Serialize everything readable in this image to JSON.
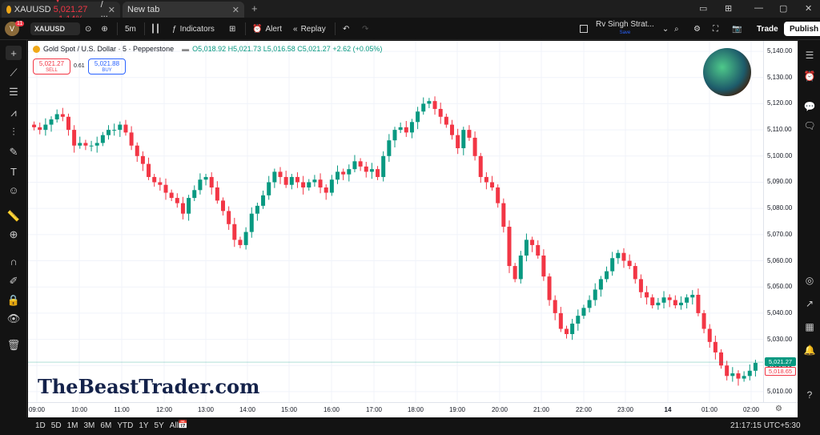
{
  "browser": {
    "tab1_title": "XAUUSD ▼ 5,021.27 −1.14% / ...",
    "tab1_symbol": "XAUUSD",
    "tab1_change": "▼ 5,021.27 −1.14%",
    "tab1_rest": "/ ...",
    "tab2_title": "New tab",
    "notif_count": "11"
  },
  "toolbar": {
    "symbol": "XAUUSD",
    "interval": "5m",
    "indicators_label": "Indicators",
    "alert_label": "Alert",
    "replay_label": "Replay",
    "layout_name": "Rv Singh Strat...",
    "layout_status": "Save",
    "trade_label": "Trade",
    "publish_label": "Publish"
  },
  "legend": {
    "title": "Gold Spot / U.S. Dollar · 5 · Pepperstone",
    "open": "O5,018.92",
    "high": "H5,021.73",
    "low": "L5,016.58",
    "close": "C5,021.27",
    "change": "+2.62 (+0.05%)",
    "sell_price": "5,021.27",
    "sell_label": "SELL",
    "spread": "0.61",
    "buy_price": "5,021.88",
    "buy_label": "BUY"
  },
  "watermark": "TheBeastTrader.com",
  "price_axis": {
    "labels": [
      "5,140.00",
      "5,130.00",
      "5,120.00",
      "5,110.00",
      "5,100.00",
      "5,090.00",
      "5,080.00",
      "5,070.00",
      "5,060.00",
      "5,050.00",
      "5,040.00",
      "5,030.00",
      "5,020.00",
      "5,010.00"
    ],
    "last_price": "5,021.27",
    "close_price": "5,018.65"
  },
  "time_axis": {
    "labels": [
      "09:00",
      "10:00",
      "11:00",
      "12:00",
      "13:00",
      "14:00",
      "15:00",
      "16:00",
      "17:00",
      "18:00",
      "19:00",
      "20:00",
      "21:00",
      "22:00",
      "23:00",
      "14",
      "01:00",
      "02:00"
    ]
  },
  "bottom": {
    "ranges": [
      "1D",
      "5D",
      "1M",
      "3M",
      "6M",
      "YTD",
      "1Y",
      "5Y",
      "All"
    ],
    "clock": "21:17:15 UTC+5:30"
  },
  "colors": {
    "up": "#089981",
    "down": "#f23645",
    "accent": "#2962ff"
  },
  "chart_data": {
    "type": "candlestick",
    "series_name": "Gold Spot / U.S. Dollar",
    "interval": "5",
    "ylim": [
      5006,
      5144
    ],
    "x_ticks": [
      "09:00",
      "10:00",
      "11:00",
      "12:00",
      "13:00",
      "14:00",
      "15:00",
      "16:00",
      "17:00",
      "18:00",
      "19:00",
      "20:00",
      "21:00",
      "22:00",
      "23:00",
      "14",
      "01:00",
      "02:00"
    ],
    "closes": [
      5111,
      5110,
      5112,
      5114,
      5116,
      5115,
      5110,
      5104,
      5105,
      5104,
      5104,
      5105,
      5108,
      5110,
      5110,
      5112,
      5109,
      5104,
      5100,
      5097,
      5092,
      5090,
      5089,
      5086,
      5084,
      5082,
      5078,
      5084,
      5087,
      5091,
      5092,
      5088,
      5083,
      5079,
      5074,
      5068,
      5066,
      5071,
      5078,
      5081,
      5085,
      5090,
      5094,
      5092,
      5089,
      5092,
      5090,
      5088,
      5090,
      5091,
      5088,
      5086,
      5091,
      5094,
      5093,
      5095,
      5098,
      5096,
      5094,
      5095,
      5092,
      5100,
      5106,
      5110,
      5111,
      5109,
      5113,
      5117,
      5120,
      5121,
      5118,
      5115,
      5112,
      5108,
      5103,
      5110,
      5107,
      5100,
      5092,
      5090,
      5088,
      5082,
      5073,
      5058,
      5053,
      5062,
      5068,
      5066,
      5062,
      5054,
      5045,
      5040,
      5034,
      5032,
      5036,
      5039,
      5042,
      5045,
      5049,
      5053,
      5056,
      5061,
      5063,
      5060,
      5058,
      5053,
      5048,
      5046,
      5043,
      5044,
      5046,
      5045,
      5043,
      5044,
      5046,
      5047,
      5040,
      5034,
      5029,
      5025,
      5020,
      5016,
      5017,
      5015,
      5016,
      5018,
      5021
    ]
  }
}
